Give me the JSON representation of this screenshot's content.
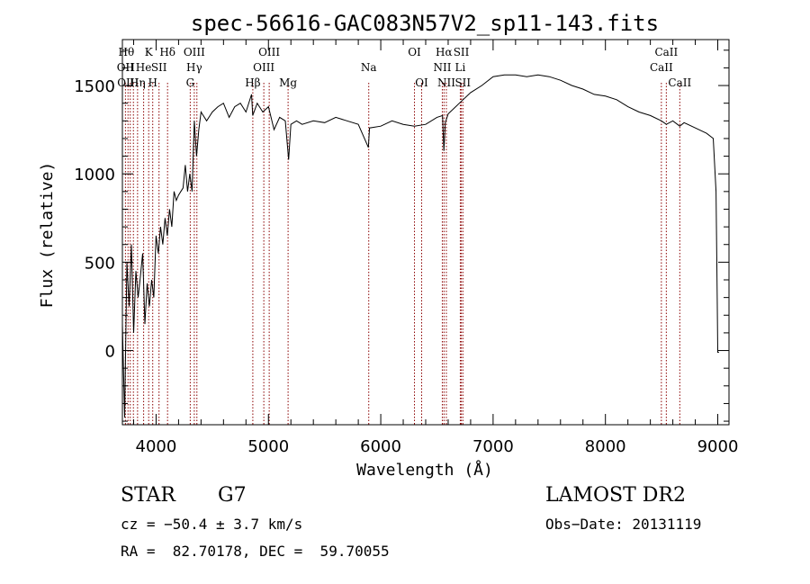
{
  "chart_data": {
    "type": "line",
    "title": "spec-56616-GAC083N57V2_sp11-143.fits",
    "xlabel": "Wavelength (Å)",
    "ylabel": "Flux (relative)",
    "xlim": [
      3700,
      9100
    ],
    "ylim": [
      -420,
      1760
    ],
    "x_ticks": [
      4000,
      5000,
      6000,
      7000,
      8000,
      9000
    ],
    "y_ticks": [
      0,
      500,
      1000,
      1500
    ],
    "x_tick_labels": [
      "4000",
      "5000",
      "6000",
      "7000",
      "8000",
      "9000"
    ],
    "y_tick_labels": [
      "0",
      "500",
      "1000",
      "1500"
    ],
    "grid": false,
    "series": [
      {
        "x": [
          3700,
          3720,
          3740,
          3760,
          3780,
          3800,
          3820,
          3840,
          3860,
          3880,
          3900,
          3920,
          3940,
          3960,
          3980,
          4000,
          4020,
          4040,
          4060,
          4080,
          4100,
          4120,
          4140,
          4160,
          4180,
          4200,
          4220,
          4240,
          4260,
          4280,
          4300,
          4320,
          4340,
          4360,
          4380,
          4400,
          4450,
          4500,
          4550,
          4600,
          4650,
          4700,
          4750,
          4800,
          4850,
          4860,
          4900,
          4950,
          5000,
          5050,
          5100,
          5150,
          5180,
          5200,
          5250,
          5300,
          5400,
          5500,
          5600,
          5700,
          5800,
          5890,
          5900,
          6000,
          6100,
          6200,
          6300,
          6400,
          6500,
          6550,
          6562,
          6575,
          6600,
          6700,
          6800,
          6900,
          7000,
          7100,
          7200,
          7300,
          7400,
          7500,
          7600,
          7700,
          7800,
          7900,
          8000,
          8100,
          8200,
          8300,
          8400,
          8498,
          8542,
          8600,
          8662,
          8700,
          8800,
          8900,
          8960,
          8985,
          8995,
          9000,
          9010
        ],
        "y": [
          150,
          -380,
          500,
          250,
          600,
          100,
          450,
          300,
          420,
          550,
          150,
          380,
          250,
          400,
          300,
          650,
          550,
          700,
          600,
          750,
          650,
          800,
          700,
          900,
          850,
          880,
          900,
          920,
          1050,
          900,
          1000,
          900,
          1300,
          1100,
          1250,
          1350,
          1300,
          1350,
          1380,
          1400,
          1320,
          1380,
          1400,
          1350,
          1450,
          1330,
          1400,
          1350,
          1380,
          1250,
          1320,
          1300,
          1080,
          1280,
          1300,
          1280,
          1300,
          1290,
          1320,
          1300,
          1280,
          1150,
          1260,
          1270,
          1300,
          1280,
          1270,
          1280,
          1320,
          1330,
          1130,
          1290,
          1340,
          1400,
          1460,
          1500,
          1550,
          1560,
          1560,
          1550,
          1560,
          1550,
          1530,
          1500,
          1480,
          1450,
          1440,
          1420,
          1380,
          1350,
          1330,
          1300,
          1280,
          1300,
          1270,
          1290,
          1260,
          1230,
          1200,
          900,
          300,
          -10,
          -10
        ]
      }
    ],
    "line_annotations": [
      {
        "x": 3735,
        "label": "Hθ",
        "row": 0
      },
      {
        "x": 3727,
        "label": "OII",
        "row": 1
      },
      {
        "x": 3750,
        "label": "OIII",
        "row": 2
      },
      {
        "x": 3770,
        "label": "H",
        "row": 1
      },
      {
        "x": 3835,
        "label": "Hη",
        "row": 2
      },
      {
        "x": 3889,
        "label": "He",
        "row": 1
      },
      {
        "x": 3934,
        "label": "K",
        "row": 0
      },
      {
        "x": 3970,
        "label": "H",
        "row": 2
      },
      {
        "x": 4026,
        "label": "SII",
        "row": 1
      },
      {
        "x": 4102,
        "label": "Hδ",
        "row": 0
      },
      {
        "x": 4340,
        "label": "OIII",
        "row": 0
      },
      {
        "x": 4340,
        "label": "Hγ",
        "row": 1
      },
      {
        "x": 4304,
        "label": "G",
        "row": 2
      },
      {
        "x": 4861,
        "label": "Hβ",
        "row": 2
      },
      {
        "x": 5007,
        "label": "OIII",
        "row": 0
      },
      {
        "x": 4959,
        "label": "OIII",
        "row": 1
      },
      {
        "x": 5175,
        "label": "Mg",
        "row": 2
      },
      {
        "x": 5893,
        "label": "Na",
        "row": 1
      },
      {
        "x": 6300,
        "label": "OI",
        "row": 0
      },
      {
        "x": 6364,
        "label": "OI",
        "row": 2
      },
      {
        "x": 6563,
        "label": "Hα",
        "row": 0
      },
      {
        "x": 6548,
        "label": "NII",
        "row": 1
      },
      {
        "x": 6584,
        "label": "NII",
        "row": 2
      },
      {
        "x": 6717,
        "label": "SII",
        "row": 0
      },
      {
        "x": 6708,
        "label": "Li",
        "row": 1
      },
      {
        "x": 6731,
        "label": "SII",
        "row": 2
      },
      {
        "x": 8542,
        "label": "CaII",
        "row": 0
      },
      {
        "x": 8498,
        "label": "CaII",
        "row": 1
      },
      {
        "x": 8662,
        "label": "CaII",
        "row": 2
      }
    ],
    "marker_lines": [
      3727,
      3750,
      3770,
      3798,
      3835,
      3889,
      3934,
      3970,
      4026,
      4102,
      4304,
      4340,
      4363,
      4861,
      4959,
      5007,
      5175,
      5893,
      6300,
      6364,
      6548,
      6563,
      6584,
      6708,
      6717,
      6731,
      8498,
      8542,
      8662
    ]
  },
  "info": {
    "class_label": "STAR",
    "subclass": "G7",
    "survey": "LAMOST DR2",
    "cz": "cz = −50.4 ± 3.7 km/s",
    "obs_date": "Obs−Date: 20131119",
    "coords": "RA =  82.70178, DEC =  59.70055"
  },
  "colors": {
    "line": "#000000",
    "marker": "#8b0000",
    "axis": "#000000"
  }
}
